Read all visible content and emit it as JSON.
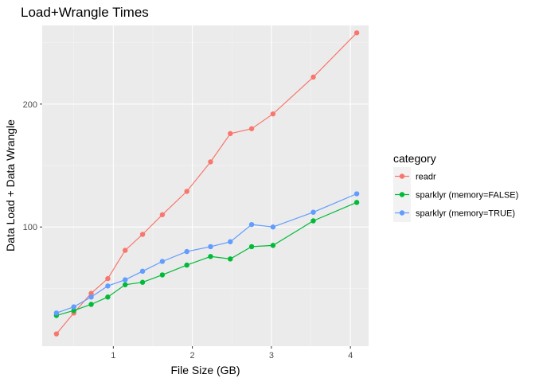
{
  "chart_data": {
    "type": "line",
    "title": "Load+Wrangle Times",
    "xlabel": "File Size (GB)",
    "ylabel": "Data Load + Data Wrangle",
    "xlim": [
      0.1,
      4.23
    ],
    "ylim": [
      3,
      264
    ],
    "x_ticks": [
      1,
      2,
      3,
      4
    ],
    "x_tick_labels": [
      "1",
      "2",
      "3",
      "4"
    ],
    "y_ticks": [
      100,
      200
    ],
    "y_tick_labels": [
      "100",
      "200"
    ],
    "grid": true,
    "legend": {
      "title": "category",
      "position": "right"
    },
    "series": [
      {
        "name": "readr",
        "color": "#F8766D",
        "x": [
          0.28,
          0.5,
          0.72,
          0.93,
          1.15,
          1.37,
          1.62,
          1.93,
          2.23,
          2.48,
          2.75,
          3.02,
          3.53,
          4.08
        ],
        "y": [
          13,
          30,
          46,
          58,
          81,
          94,
          110,
          129,
          153,
          176,
          180,
          192,
          222,
          258
        ]
      },
      {
        "name": "sparklyr (memory=FALSE)",
        "color": "#00BA38",
        "x": [
          0.28,
          0.5,
          0.72,
          0.93,
          1.15,
          1.37,
          1.62,
          1.93,
          2.23,
          2.48,
          2.75,
          3.02,
          3.53,
          4.08
        ],
        "y": [
          28,
          32,
          37,
          43,
          53,
          55,
          61,
          69,
          76,
          74,
          84,
          85,
          105,
          120
        ]
      },
      {
        "name": "sparklyr (memory=TRUE)",
        "color": "#619CFF",
        "x": [
          0.28,
          0.5,
          0.72,
          0.93,
          1.15,
          1.37,
          1.62,
          1.93,
          2.23,
          2.48,
          2.75,
          3.02,
          3.53,
          4.08
        ],
        "y": [
          30,
          35,
          43,
          52,
          57,
          64,
          72,
          80,
          84,
          88,
          102,
          100,
          112,
          127
        ]
      }
    ]
  }
}
